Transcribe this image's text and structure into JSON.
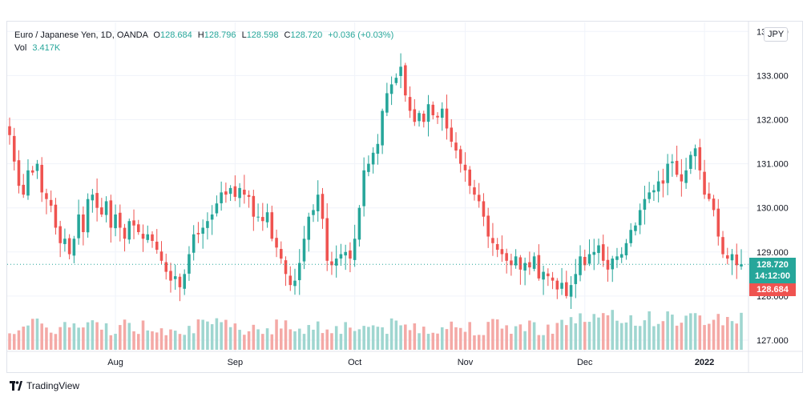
{
  "legend": {
    "title": "Euro / Japanese Yen, 1D, OANDA",
    "o_label": "O",
    "o": "128.684",
    "h_label": "H",
    "h": "128.796",
    "l_label": "L",
    "l": "128.598",
    "c_label": "C",
    "c": "128.720",
    "change": "+0.036 (+0.03%)",
    "vol_label": "Vol",
    "vol": "3.417K"
  },
  "currency_badge": "JPY",
  "price_tag": {
    "price": "128.720",
    "countdown": "14:12:00"
  },
  "open_tag": "128.684",
  "brand": {
    "name": "TradingView",
    "icon": "tradingview-logo-icon"
  },
  "colors": {
    "up": "#26a69a",
    "down": "#ef5350",
    "up_vol": "#9fd6d0",
    "down_vol": "#f4a9a6",
    "grid": "#f0f3fa"
  },
  "chart_data": {
    "type": "candlestick",
    "symbol": "EUR/JPY",
    "timeframe": "1D",
    "y_ticks": [
      "127.000",
      "128.000",
      "129.000",
      "130.000",
      "131.000",
      "132.000",
      "133.000",
      "134.000"
    ],
    "ylim": [
      126.8,
      134.0
    ],
    "x_ticks": [
      {
        "label": "Aug",
        "index": 23
      },
      {
        "label": "Sep",
        "index": 49
      },
      {
        "label": "Oct",
        "index": 75
      },
      {
        "label": "Nov",
        "index": 99
      },
      {
        "label": "Dec",
        "index": 125
      },
      {
        "label": "2022",
        "index": 151
      }
    ],
    "grid": true,
    "last_price": 128.72,
    "open_price": 128.684,
    "closes": [
      131.65,
      131.05,
      130.5,
      130.3,
      130.85,
      130.8,
      131.0,
      130.35,
      130.2,
      130.05,
      129.55,
      129.2,
      129.3,
      128.95,
      129.3,
      129.85,
      129.45,
      130.2,
      130.3,
      130.0,
      129.85,
      130.15,
      129.55,
      129.85,
      129.55,
      129.3,
      129.7,
      129.6,
      129.45,
      129.3,
      129.4,
      129.25,
      129.05,
      128.8,
      128.55,
      128.35,
      128.45,
      128.2,
      128.5,
      128.95,
      129.4,
      129.4,
      129.55,
      129.7,
      129.85,
      130.1,
      130.35,
      130.3,
      130.45,
      130.25,
      130.45,
      130.3,
      130.25,
      129.8,
      129.8,
      129.7,
      129.9,
      129.3,
      129.1,
      128.85,
      128.5,
      128.25,
      128.35,
      128.75,
      129.3,
      129.8,
      129.95,
      130.3,
      129.75,
      128.8,
      128.7,
      128.85,
      128.95,
      129.0,
      128.85,
      129.3,
      130.0,
      130.85,
      131.0,
      131.25,
      131.45,
      132.2,
      132.6,
      132.8,
      132.95,
      133.2,
      132.55,
      132.2,
      131.95,
      132.15,
      131.95,
      132.35,
      132.1,
      132.05,
      132.25,
      131.8,
      131.5,
      131.3,
      131.0,
      130.85,
      130.5,
      130.3,
      130.15,
      129.8,
      129.35,
      129.2,
      129.05,
      128.95,
      128.8,
      128.7,
      128.9,
      128.6,
      128.75,
      128.65,
      128.9,
      128.4,
      128.55,
      128.45,
      128.35,
      128.15,
      128.3,
      128.0,
      128.25,
      128.5,
      128.9,
      128.7,
      128.95,
      129.0,
      129.15,
      128.8,
      128.6,
      128.85,
      128.9,
      128.95,
      129.2,
      129.5,
      129.6,
      129.95,
      130.2,
      130.35,
      130.4,
      130.6,
      130.55,
      131.0,
      131.05,
      130.75,
      130.6,
      130.85,
      131.2,
      131.35,
      130.85,
      130.3,
      130.2,
      129.95,
      129.35,
      128.95,
      128.85,
      128.95,
      128.7,
      128.72
    ],
    "volume_note": "Volume histogram below price, one bar per session"
  }
}
